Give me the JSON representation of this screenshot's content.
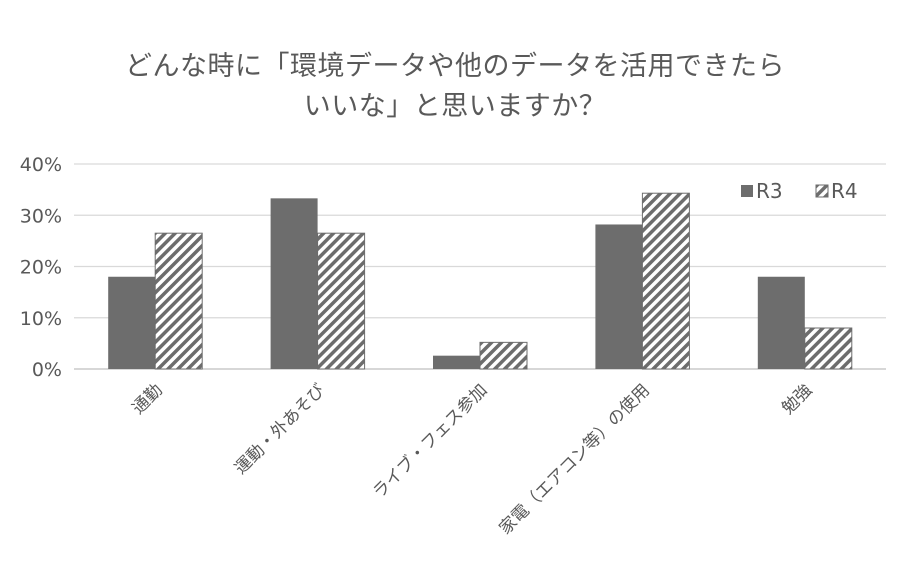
{
  "chart_data": {
    "type": "bar",
    "title_lines": [
      "どんな時に「環境データや他のデータを活用できたら",
      "いいな」と思いますか？"
    ],
    "categories": [
      "通勤",
      "運動・外あそび",
      "ライブ・フェス参加",
      "家電（エアコン等）の使用",
      "勉強"
    ],
    "series": [
      {
        "name": "R3",
        "values": [
          18,
          33.3,
          2.6,
          28.2,
          18
        ],
        "pattern": "solid"
      },
      {
        "name": "R4",
        "values": [
          26.5,
          26.5,
          5.2,
          34.3,
          8
        ],
        "pattern": "hatched"
      }
    ],
    "ylim": [
      0,
      40
    ],
    "yticks": [
      "0%",
      "10%",
      "20%",
      "30%",
      "40%"
    ],
    "grid": true,
    "legend_position": "top-right",
    "colors": {
      "bar": "#6d6d6d",
      "grid": "#d9d9d9",
      "text": "#595959"
    }
  }
}
